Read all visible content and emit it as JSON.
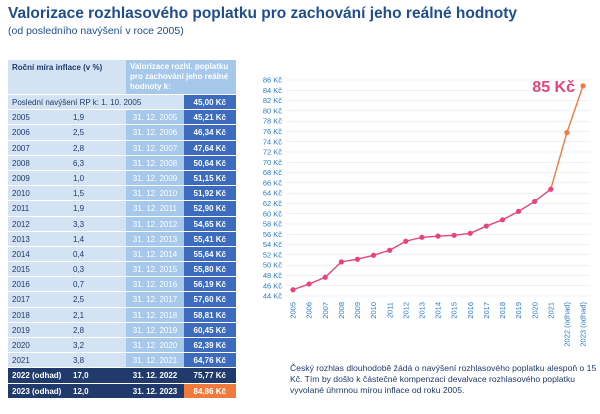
{
  "title": "Valorizace rozhlasového poplatku pro zachování jeho reálné hodnoty",
  "subtitle": "(od posledního navýšení v roce 2005)",
  "table": {
    "col1_header": "Roční míra inflace (v %)",
    "col2_header": "Valorizace rozhl. poplatku pro zachování jeho reálné hodnoty k:",
    "base_label": "Poslední navýšení RP k: 1. 10. 2005",
    "base_value": "45,00 Kč",
    "rows": [
      {
        "year": "2005",
        "inflation": "1,9",
        "date": "31. 12. 2005",
        "value": "45,21 Kč"
      },
      {
        "year": "2006",
        "inflation": "2,5",
        "date": "31. 12. 2006",
        "value": "46,34 Kč"
      },
      {
        "year": "2007",
        "inflation": "2,8",
        "date": "31. 12. 2007",
        "value": "47,64 Kč"
      },
      {
        "year": "2008",
        "inflation": "6,3",
        "date": "31. 12. 2008",
        "value": "50,64 Kč"
      },
      {
        "year": "2009",
        "inflation": "1,0",
        "date": "31. 12. 2009",
        "value": "51,15 Kč"
      },
      {
        "year": "2010",
        "inflation": "1,5",
        "date": "31. 12. 2010",
        "value": "51,92 Kč"
      },
      {
        "year": "2011",
        "inflation": "1,9",
        "date": "31. 12. 2011",
        "value": "52,90 Kč"
      },
      {
        "year": "2012",
        "inflation": "3,3",
        "date": "31. 12. 2012",
        "value": "54,65 Kč"
      },
      {
        "year": "2013",
        "inflation": "1,4",
        "date": "31. 12. 2013",
        "value": "55,41 Kč"
      },
      {
        "year": "2014",
        "inflation": "0,4",
        "date": "31. 12. 2014",
        "value": "55,64 Kč"
      },
      {
        "year": "2015",
        "inflation": "0,3",
        "date": "31. 12. 2015",
        "value": "55,80 Kč"
      },
      {
        "year": "2016",
        "inflation": "0,7",
        "date": "31. 12. 2016",
        "value": "56,19 Kč"
      },
      {
        "year": "2017",
        "inflation": "2,5",
        "date": "31. 12. 2017",
        "value": "57,60 Kč"
      },
      {
        "year": "2018",
        "inflation": "2,1",
        "date": "31. 12. 2018",
        "value": "58,81 Kč"
      },
      {
        "year": "2019",
        "inflation": "2,8",
        "date": "31. 12. 2019",
        "value": "60,45 Kč"
      },
      {
        "year": "2020",
        "inflation": "3,2",
        "date": "31. 12. 2020",
        "value": "62,39 Kč"
      },
      {
        "year": "2021",
        "inflation": "3,8",
        "date": "31. 12. 2021",
        "value": "64,76 Kč"
      },
      {
        "year": "2022 (odhad)",
        "inflation": "17,0",
        "date": "31. 12. 2022",
        "value": "75,77 Kč"
      },
      {
        "year": "2023 (odhad)",
        "inflation": "12,0",
        "date": "31. 12. 2023",
        "value": "84,86 Kč"
      }
    ]
  },
  "chart_data": {
    "type": "line",
    "title": "",
    "xlabel": "",
    "ylabel": "",
    "x": [
      "2005",
      "2006",
      "2007",
      "2008",
      "2009",
      "2010",
      "2011",
      "2012",
      "2013",
      "2014",
      "2015",
      "2016",
      "2017",
      "2018",
      "2019",
      "2020",
      "2021",
      "2022 (odhad)",
      "2023 (odhad)"
    ],
    "y": [
      45.21,
      46.34,
      47.64,
      50.64,
      51.15,
      51.92,
      52.9,
      54.65,
      55.41,
      55.64,
      55.8,
      56.19,
      57.6,
      58.81,
      60.45,
      62.39,
      64.76,
      75.77,
      84.86
    ],
    "ylim": [
      44,
      86
    ],
    "ytick_step": 2,
    "ytick_suffix": " Kč",
    "grid": true,
    "callout": "85 Kč",
    "colors": {
      "line_main": "#e5457b",
      "line_estimate": "#f07a3c"
    }
  },
  "note": "Český rozhlas dlouhodobě žádá o navýšení rozhlasového poplatku alespoň o 15 Kč. Tím by došlo k částečné kompenzaci devalvace rozhlasového poplatku vyvolané úhrnnou mírou inflace od roku 2005."
}
